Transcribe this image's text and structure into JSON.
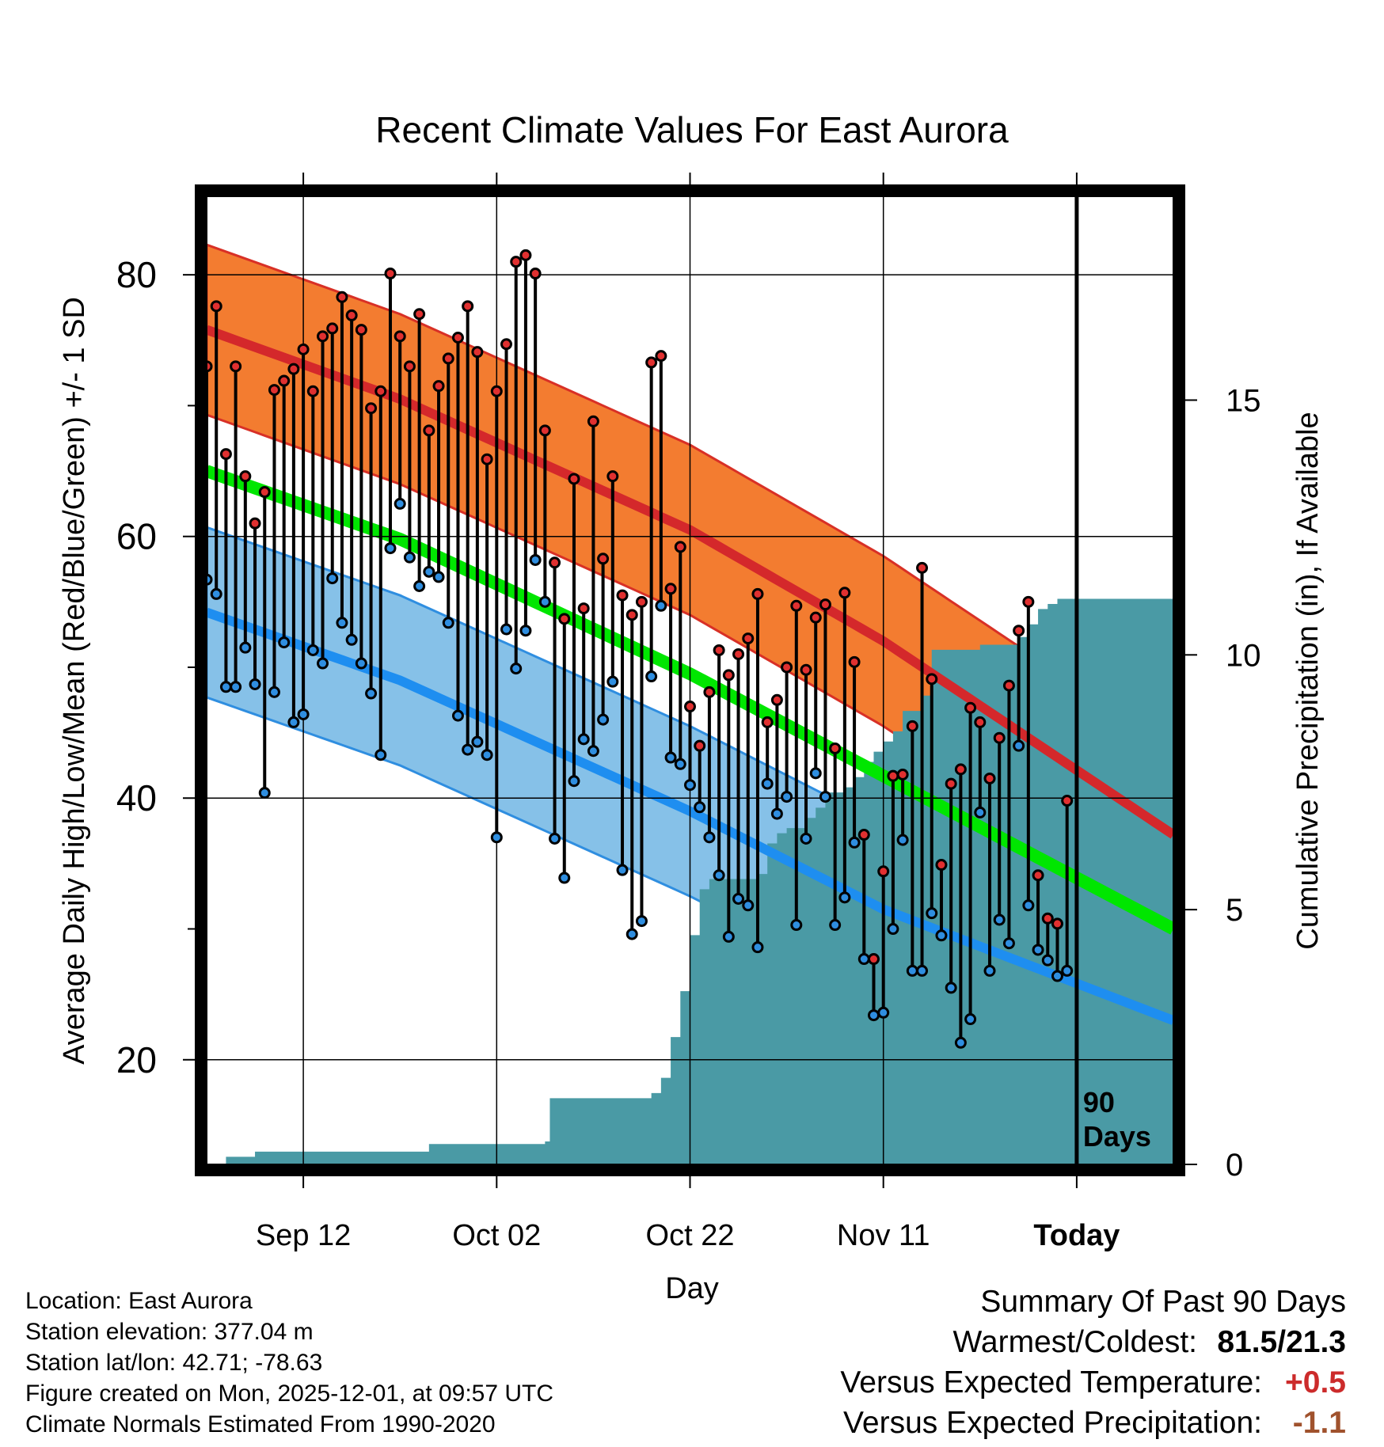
{
  "chart_data": {
    "type": "line",
    "title": "Recent Climate Values For East Aurora",
    "xlabel": "Day",
    "ylabel": "Average Daily High/Low/Mean (Red/Blue/Green) +/- 1 SD",
    "y2label": "Cumulative Precipitation (in), If Available",
    "ylim": [
      12,
      86
    ],
    "y2lim": [
      0,
      19
    ],
    "xlim": [
      0,
      100
    ],
    "x_ticks": [
      {
        "day": 10,
        "label": "Sep 12"
      },
      {
        "day": 30,
        "label": "Oct 02"
      },
      {
        "day": 50,
        "label": "Oct 22"
      },
      {
        "day": 70,
        "label": "Nov 11"
      },
      {
        "day": 90,
        "label": "Today"
      }
    ],
    "y_ticks": [
      20,
      40,
      60,
      80
    ],
    "y_minor_ticks": [
      30,
      50,
      70
    ],
    "y2_ticks": [
      0,
      5,
      10,
      15
    ],
    "today_day": 90,
    "today_label": [
      "90",
      "Days"
    ],
    "normals": {
      "high_mean": [
        [
          0,
          75.8
        ],
        [
          20,
          70.5
        ],
        [
          50,
          60.5
        ],
        [
          70,
          52.0
        ],
        [
          100,
          37.2
        ]
      ],
      "high_sd": 6.5,
      "low_mean": [
        [
          0,
          54.2
        ],
        [
          20,
          49.0
        ],
        [
          50,
          39.0
        ],
        [
          70,
          31.5
        ],
        [
          100,
          23.0
        ]
      ],
      "low_sd": 6.5,
      "avg_mean": [
        [
          0,
          65.0
        ],
        [
          20,
          59.8
        ],
        [
          50,
          49.5
        ],
        [
          70,
          41.7
        ],
        [
          100,
          30.0
        ]
      ]
    },
    "series": [
      {
        "name": "High",
        "color": "#e03030",
        "values": [
          73,
          77.6,
          66.3,
          73,
          64.6,
          61,
          63.4,
          71.2,
          71.9,
          72.8,
          74.3,
          71.1,
          75.3,
          75.9,
          78.3,
          76.9,
          75.8,
          69.8,
          71.1,
          80.1,
          75.3,
          73,
          77,
          68.1,
          71.5,
          73.6,
          75.2,
          77.6,
          74.1,
          65.9,
          71.1,
          74.7,
          81,
          81.5,
          80.1,
          68.1,
          58,
          53.7,
          64.4,
          54.5,
          68.8,
          58.3,
          64.6,
          55.5,
          54,
          55,
          73.3,
          73.8,
          56,
          59.2,
          47,
          44,
          48.1,
          51.3,
          49.4,
          51,
          52.2,
          55.6,
          45.8,
          47.5,
          50,
          54.7,
          49.8,
          53.8,
          54.8,
          43.8,
          55.7,
          50.4,
          37.2,
          27.7,
          34.4,
          41.7,
          41.8,
          45.5,
          57.6,
          49.1,
          34.9,
          41.1,
          42.2,
          46.9,
          45.8,
          41.5,
          44.6,
          48.6,
          52.8,
          55,
          34.1,
          30.8,
          30.4,
          39.8
        ]
      },
      {
        "name": "Low",
        "color": "#2f8ee0",
        "values": [
          56.7,
          55.6,
          48.5,
          48.5,
          51.5,
          48.7,
          40.4,
          48.1,
          51.9,
          45.8,
          46.4,
          51.3,
          50.3,
          56.8,
          53.4,
          52.1,
          50.3,
          48,
          43.3,
          59.1,
          62.5,
          58.4,
          56.2,
          57.3,
          56.9,
          53.4,
          46.3,
          43.7,
          44.3,
          43.3,
          37,
          52.9,
          49.9,
          52.8,
          58.2,
          55,
          36.9,
          33.9,
          41.3,
          44.5,
          43.6,
          46,
          48.9,
          34.5,
          29.6,
          30.6,
          49.3,
          54.7,
          43.1,
          42.6,
          41,
          39.3,
          37,
          34.1,
          29.4,
          32.3,
          31.8,
          28.6,
          41.1,
          38.8,
          40.1,
          30.3,
          36.9,
          41.9,
          40.1,
          30.3,
          32.4,
          36.6,
          27.7,
          23.4,
          23.6,
          30,
          36.8,
          26.8,
          26.8,
          31.2,
          29.5,
          25.5,
          21.3,
          23.1,
          38.9,
          26.8,
          30.7,
          28.9,
          44,
          31.8,
          28.4,
          27.6,
          26.4,
          26.8
        ]
      },
      {
        "name": "Cumulative Precipitation",
        "color": "#4a9aa5",
        "steps": [
          [
            2,
            0.15
          ],
          [
            5,
            0.25
          ],
          [
            22,
            0.25
          ],
          [
            23,
            0.4
          ],
          [
            35,
            0.45
          ],
          [
            35.5,
            1.3
          ],
          [
            46,
            1.4
          ],
          [
            47,
            1.7
          ],
          [
            48,
            2.5
          ],
          [
            49,
            3.4
          ],
          [
            50,
            4.5
          ],
          [
            51,
            5.4
          ],
          [
            52,
            5.6
          ],
          [
            57,
            5.7
          ],
          [
            58,
            6.3
          ],
          [
            59,
            6.5
          ],
          [
            60,
            6.6
          ],
          [
            62,
            6.8
          ],
          [
            63,
            7.0
          ],
          [
            64,
            7.3
          ],
          [
            66,
            7.4
          ],
          [
            67,
            7.6
          ],
          [
            68,
            7.9
          ],
          [
            69,
            8.1
          ],
          [
            70,
            8.3
          ],
          [
            71,
            8.5
          ],
          [
            72,
            8.9
          ],
          [
            74,
            9.2
          ],
          [
            75,
            10.1
          ],
          [
            80,
            10.2
          ],
          [
            84,
            10.35
          ],
          [
            85,
            10.6
          ],
          [
            86,
            10.9
          ],
          [
            87,
            11.0
          ],
          [
            88,
            11.1
          ],
          [
            100,
            11.1
          ]
        ]
      }
    ]
  },
  "footer": {
    "location": "Location: East Aurora",
    "elevation": "Station elevation: 377.04 m",
    "latlon": "Station lat/lon: 42.71; -78.63",
    "created": "Figure created on Mon, 2025-12-01, at 09:57 UTC",
    "normals": "Climate Normals Estimated From 1990-2020"
  },
  "summary": {
    "title": "Summary Of Past 90 Days",
    "warm_cold_label": "Warmest/Coldest:",
    "warm_cold_value": "81.5/21.3",
    "temp_label": "Versus Expected Temperature:",
    "temp_value": "+0.5",
    "precip_label": "Versus Expected Precipitation:",
    "precip_value": "-1.1",
    "colors": {
      "temp": "#cc2b2b",
      "precip": "#a0522d"
    }
  }
}
